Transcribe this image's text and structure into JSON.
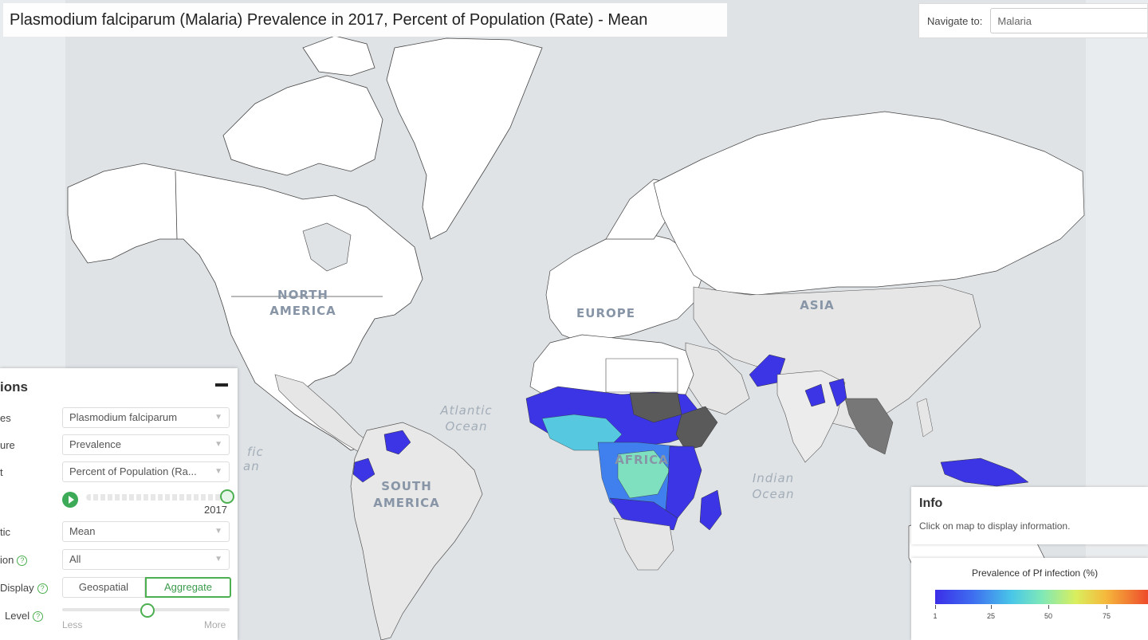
{
  "header": {
    "title": "Plasmodium falciparum (Malaria) Prevalence in 2017, Percent of Population (Rate) - Mean"
  },
  "navigate": {
    "label": "Navigate to:",
    "value": "Malaria"
  },
  "map": {
    "labels": {
      "north_america": [
        "NORTH",
        "AMERICA"
      ],
      "south_america": [
        "SOUTH",
        "AMERICA"
      ],
      "europe": "EUROPE",
      "asia": "ASIA",
      "africa": "AFRICA",
      "atlantic": [
        "Atlantic",
        "Ocean"
      ],
      "indian": [
        "Indian",
        "Ocean"
      ],
      "pacific_partial": [
        "fic",
        "an"
      ]
    }
  },
  "options": {
    "header": "ions",
    "rows": [
      {
        "label": "es",
        "value": "Plasmodium falciparum"
      },
      {
        "label": "ure",
        "value": "Prevalence"
      },
      {
        "label": "t",
        "value": "Percent of Population (Ra..."
      },
      {
        "label": "tic",
        "value": "Mean"
      },
      {
        "label": "ion",
        "value": "All"
      }
    ],
    "timeline_year": "2017",
    "display": {
      "label": "Display",
      "options": [
        "Geospatial",
        "Aggregate"
      ],
      "selected": "Aggregate"
    },
    "level": {
      "label": "Level",
      "min_label": "Less",
      "max_label": "More",
      "fraction": 0.5
    }
  },
  "info": {
    "title": "Info",
    "text": "Click on map to display information."
  },
  "legend": {
    "title": "Prevalence of Pf infection (%)",
    "ticks": [
      "1",
      "25",
      "50",
      "75"
    ]
  },
  "colors": {
    "ocean": "#dfe3e6",
    "land": "#ffffff",
    "no_data": "#e8e8e8",
    "low": "#3b35e6",
    "mid": "#48b8e8",
    "high": "#9ae87a",
    "accent": "#3daa57"
  }
}
